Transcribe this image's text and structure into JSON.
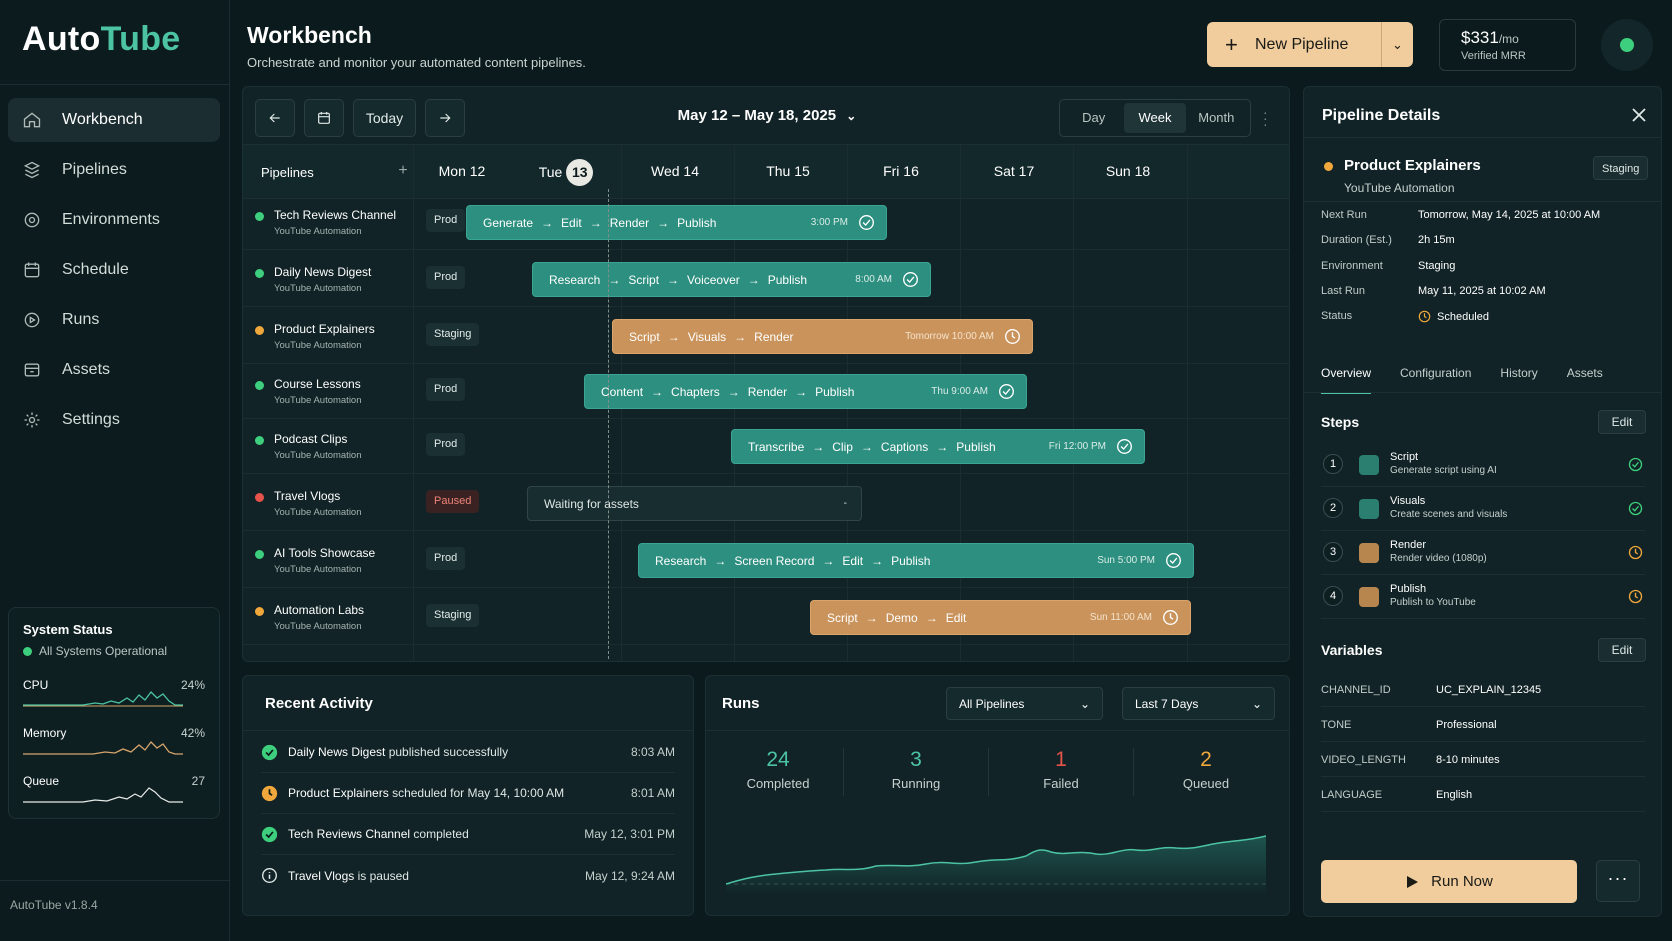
{
  "app": {
    "logo_part1": "Auto",
    "logo_part2": "Tube",
    "version": "AutoTube v1.8.4"
  },
  "sidebar": {
    "items": [
      {
        "label": "Workbench",
        "icon": "home-icon",
        "active": true
      },
      {
        "label": "Pipelines",
        "icon": "pipelines-icon"
      },
      {
        "label": "Environments",
        "icon": "environments-icon"
      },
      {
        "label": "Schedule",
        "icon": "calendar-icon"
      },
      {
        "label": "Runs",
        "icon": "play-circle-icon"
      },
      {
        "label": "Assets",
        "icon": "assets-icon"
      },
      {
        "label": "Settings",
        "icon": "gear-icon"
      }
    ]
  },
  "system_status": {
    "title": "System Status",
    "subtitle": "All Systems Operational",
    "metrics": [
      {
        "label": "CPU",
        "value": "24%"
      },
      {
        "label": "Memory",
        "value": "42%"
      },
      {
        "label": "Queue",
        "value": "27"
      }
    ]
  },
  "header": {
    "title": "Workbench",
    "subtitle": "Orchestrate and monitor your automated content pipelines.",
    "new_button": "New Pipeline",
    "mrr_amount": "$331",
    "mrr_unit": "/mo",
    "mrr_label": "Verified MRR"
  },
  "calendar": {
    "today_label": "Today",
    "range": "May 12 – May 18, 2025",
    "views": [
      "Day",
      "Week",
      "Month"
    ],
    "active_view": "Week",
    "pipelines_header": "Pipelines",
    "days": [
      {
        "label": "Mon 12"
      },
      {
        "label": "Tue",
        "badge": "13"
      },
      {
        "label": "Wed 14"
      },
      {
        "label": "Thu 15"
      },
      {
        "label": "Fri 16"
      },
      {
        "label": "Sat 17"
      },
      {
        "label": "Sun 18"
      }
    ],
    "rows": [
      {
        "name": "Tech Reviews Channel",
        "sub": "YouTube Automation",
        "env": "Prod",
        "status": "green",
        "bar": {
          "style": "teal",
          "steps": [
            "Generate",
            "Edit",
            "Render",
            "Publish"
          ],
          "time": "3:00 PM",
          "icon": "check"
        }
      },
      {
        "name": "Daily News Digest",
        "sub": "YouTube Automation",
        "env": "Prod",
        "status": "green",
        "bar": {
          "style": "teal",
          "steps": [
            "Research",
            "Script",
            "Voiceover",
            "Publish"
          ],
          "time": "8:00 AM",
          "icon": "check"
        }
      },
      {
        "name": "Product Explainers",
        "sub": "YouTube Automation",
        "env": "Staging",
        "status": "amber",
        "bar": {
          "style": "amber",
          "steps": [
            "Script",
            "Visuals",
            "Render"
          ],
          "time": "Tomorrow 10:00 AM",
          "icon": "clock"
        }
      },
      {
        "name": "Course Lessons",
        "sub": "YouTube Automation",
        "env": "Prod",
        "status": "green",
        "bar": {
          "style": "teal",
          "steps": [
            "Content",
            "Chapters",
            "Render",
            "Publish"
          ],
          "time": "Thu 9:00 AM",
          "icon": "check"
        }
      },
      {
        "name": "Podcast Clips",
        "sub": "YouTube Automation",
        "env": "Prod",
        "status": "green",
        "bar": {
          "style": "teal",
          "steps": [
            "Transcribe",
            "Clip",
            "Captions",
            "Publish"
          ],
          "time": "Fri 12:00 PM",
          "icon": "check"
        }
      },
      {
        "name": "Travel Vlogs",
        "sub": "YouTube Automation",
        "env": "Paused",
        "status": "red",
        "bar": {
          "style": "grey",
          "steps": [
            "Waiting for assets"
          ],
          "time": "-",
          "icon": "none"
        }
      },
      {
        "name": "AI Tools Showcase",
        "sub": "YouTube Automation",
        "env": "Prod",
        "status": "green",
        "bar": {
          "style": "teal",
          "steps": [
            "Research",
            "Screen Record",
            "Edit",
            "Publish"
          ],
          "time": "Sun 5:00 PM",
          "icon": "check"
        }
      },
      {
        "name": "Automation Labs",
        "sub": "YouTube Automation",
        "env": "Staging",
        "status": "amber",
        "bar": {
          "style": "amber",
          "steps": [
            "Script",
            "Demo",
            "Edit"
          ],
          "time": "Sun 11:00 AM",
          "icon": "clock"
        }
      }
    ]
  },
  "recent_activity": {
    "title": "Recent Activity",
    "items": [
      {
        "icon": "check-circle-icon",
        "subject": "Daily News Digest",
        "text": "published successfully",
        "time": "8:03 AM"
      },
      {
        "icon": "clock-icon",
        "subject": "Product Explainers",
        "text": "scheduled for May 14, 10:00 AM",
        "time": "8:01 AM"
      },
      {
        "icon": "check-circle-icon",
        "subject": "Tech Reviews Channel",
        "text": "completed",
        "time": "May 12, 3:01 PM"
      },
      {
        "icon": "info-icon",
        "subject": "Travel Vlogs",
        "text": "is paused",
        "time": "May 12, 9:24 AM"
      }
    ]
  },
  "runs": {
    "title": "Runs",
    "filter_pipelines": "All Pipelines",
    "filter_range": "Last 7 Days",
    "stats": [
      {
        "value": "24",
        "label": "Completed",
        "color": "#4cc4a3"
      },
      {
        "value": "3",
        "label": "Running",
        "color": "#4cc4a3"
      },
      {
        "value": "1",
        "label": "Failed",
        "color": "#e5534b"
      },
      {
        "value": "2",
        "label": "Queued",
        "color": "#f0a83c"
      }
    ]
  },
  "details": {
    "title": "Pipeline Details",
    "name": "Product Explainers",
    "sub": "YouTube Automation",
    "badge": "Staging",
    "fields": [
      {
        "key": "Next Run",
        "value": "Tomorrow, May 14, 2025 at 10:00 AM"
      },
      {
        "key": "Duration (Est.)",
        "value": "2h 15m"
      },
      {
        "key": "Environment",
        "value": "Staging"
      },
      {
        "key": "Last Run",
        "value": "May 11, 2025 at 10:02 AM"
      },
      {
        "key": "Status",
        "value": "Scheduled"
      }
    ],
    "tabs": [
      "Overview",
      "Configuration",
      "History",
      "Assets"
    ],
    "steps_title": "Steps",
    "edit_label": "Edit",
    "steps": [
      {
        "num": "1",
        "title": "Script",
        "desc": "Generate script using AI",
        "state": "done"
      },
      {
        "num": "2",
        "title": "Visuals",
        "desc": "Create scenes and visuals",
        "state": "done"
      },
      {
        "num": "3",
        "title": "Render",
        "desc": "Render video (1080p)",
        "state": "pending"
      },
      {
        "num": "4",
        "title": "Publish",
        "desc": "Publish to YouTube",
        "state": "pending"
      }
    ],
    "variables_title": "Variables",
    "variables": [
      {
        "key": "CHANNEL_ID",
        "value": "UC_EXPLAIN_12345"
      },
      {
        "key": "TONE",
        "value": "Professional"
      },
      {
        "key": "VIDEO_LENGTH",
        "value": "8-10 minutes"
      },
      {
        "key": "LANGUAGE",
        "value": "English"
      }
    ],
    "run_now": "Run Now"
  }
}
